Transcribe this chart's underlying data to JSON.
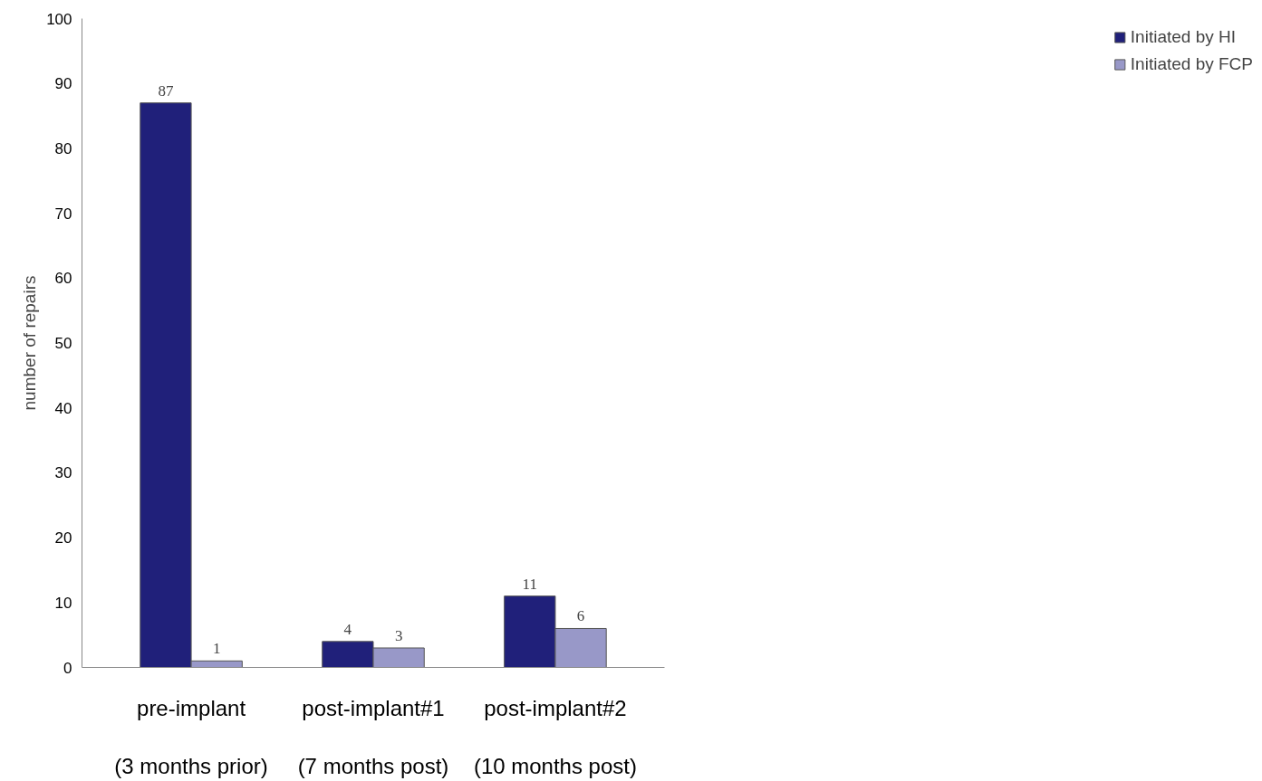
{
  "chart_data": {
    "type": "bar",
    "ylabel": "number of repairs",
    "categories": [
      "pre-implant\n\n(3 months prior)",
      "post-implant#1\n\n(7 months post)",
      "post-implant#2\n\n(10 months post)"
    ],
    "series": [
      {
        "name": "Initiated by HI",
        "color": "#20207a",
        "values": [
          87,
          4,
          11
        ]
      },
      {
        "name": "Initiated by FCP",
        "color": "#9898c8",
        "values": [
          1,
          3,
          6
        ]
      }
    ],
    "ylim": [
      0,
      100
    ],
    "yticks": [
      0,
      10,
      20,
      30,
      40,
      50,
      60,
      70,
      80,
      90,
      100
    ],
    "data_labels": true,
    "grid": false,
    "legend": "right"
  }
}
